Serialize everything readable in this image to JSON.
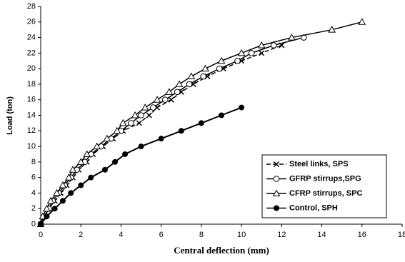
{
  "chart_data": {
    "type": "line",
    "xlabel": "Central deflection (mm)",
    "ylabel": "Load (ton)",
    "xlim": [
      0,
      18
    ],
    "xticks": [
      0,
      2,
      4,
      6,
      8,
      10,
      12,
      14,
      16,
      18
    ],
    "ylim": [
      0,
      28
    ],
    "yticks": [
      0,
      2,
      4,
      6,
      8,
      10,
      12,
      14,
      16,
      18,
      20,
      22,
      24,
      26,
      28
    ],
    "grid": false,
    "legend": "lower right",
    "series": [
      {
        "name": "Steel links, SPS",
        "color": "#000000",
        "marker": "x",
        "dash": true,
        "x": [
          0,
          0.2,
          0.4,
          0.7,
          1,
          1.3,
          1.6,
          1.9,
          2.3,
          2.6,
          3.1,
          3.6,
          4.1,
          4.9,
          5.4,
          5.8,
          6.5,
          7,
          7.6,
          8.3,
          9.1,
          10,
          11,
          12
        ],
        "values": [
          0,
          1,
          2,
          3,
          4,
          5,
          6,
          7,
          8,
          9,
          10,
          11,
          12,
          13,
          14,
          15,
          16,
          17,
          18,
          19,
          20,
          21,
          22,
          23
        ]
      },
      {
        "name": "GFRP stirrups,SPG",
        "color": "#000000",
        "marker": "circle",
        "dash": false,
        "x": [
          0,
          0.2,
          0.4,
          0.6,
          0.9,
          1.2,
          1.5,
          1.8,
          2.2,
          2.5,
          3,
          3.5,
          4,
          4.5,
          5,
          5.6,
          6.2,
          6.8,
          7.4,
          8.1,
          8.9,
          9.8,
          10.5,
          11.6,
          13.1
        ],
        "values": [
          0,
          1,
          2,
          3,
          4,
          5,
          6,
          7,
          8,
          9,
          10,
          11,
          12,
          13,
          14,
          15,
          16,
          17,
          18,
          19,
          20,
          21,
          22,
          23,
          24
        ]
      },
      {
        "name": "CFRP stirrups, SPC",
        "color": "#000000",
        "marker": "triangle",
        "dash": false,
        "x": [
          0,
          0.1,
          0.3,
          0.5,
          0.8,
          1.1,
          1.4,
          1.6,
          2,
          2.3,
          2.8,
          3.3,
          3.8,
          4.1,
          4.7,
          5.2,
          5.8,
          6.4,
          6.9,
          7.5,
          8.2,
          9,
          10,
          11,
          12.5,
          14.5,
          16
        ],
        "values": [
          0,
          1,
          2,
          3,
          4,
          5,
          6,
          7,
          8,
          9,
          10,
          11,
          12,
          13,
          14,
          15,
          16,
          17,
          18,
          19,
          20,
          21,
          22,
          23,
          24,
          25,
          26
        ]
      },
      {
        "name": "Control, SPH",
        "color": "#000000",
        "marker": "dot",
        "dash": false,
        "x": [
          0,
          0.3,
          0.7,
          1.1,
          1.5,
          2,
          2.5,
          3.2,
          3.7,
          4.2,
          5,
          6,
          7,
          8,
          9,
          10
        ],
        "values": [
          0,
          1,
          2,
          3,
          4,
          5,
          6,
          7,
          8,
          9,
          10,
          11,
          12,
          13,
          14,
          15
        ]
      }
    ]
  }
}
